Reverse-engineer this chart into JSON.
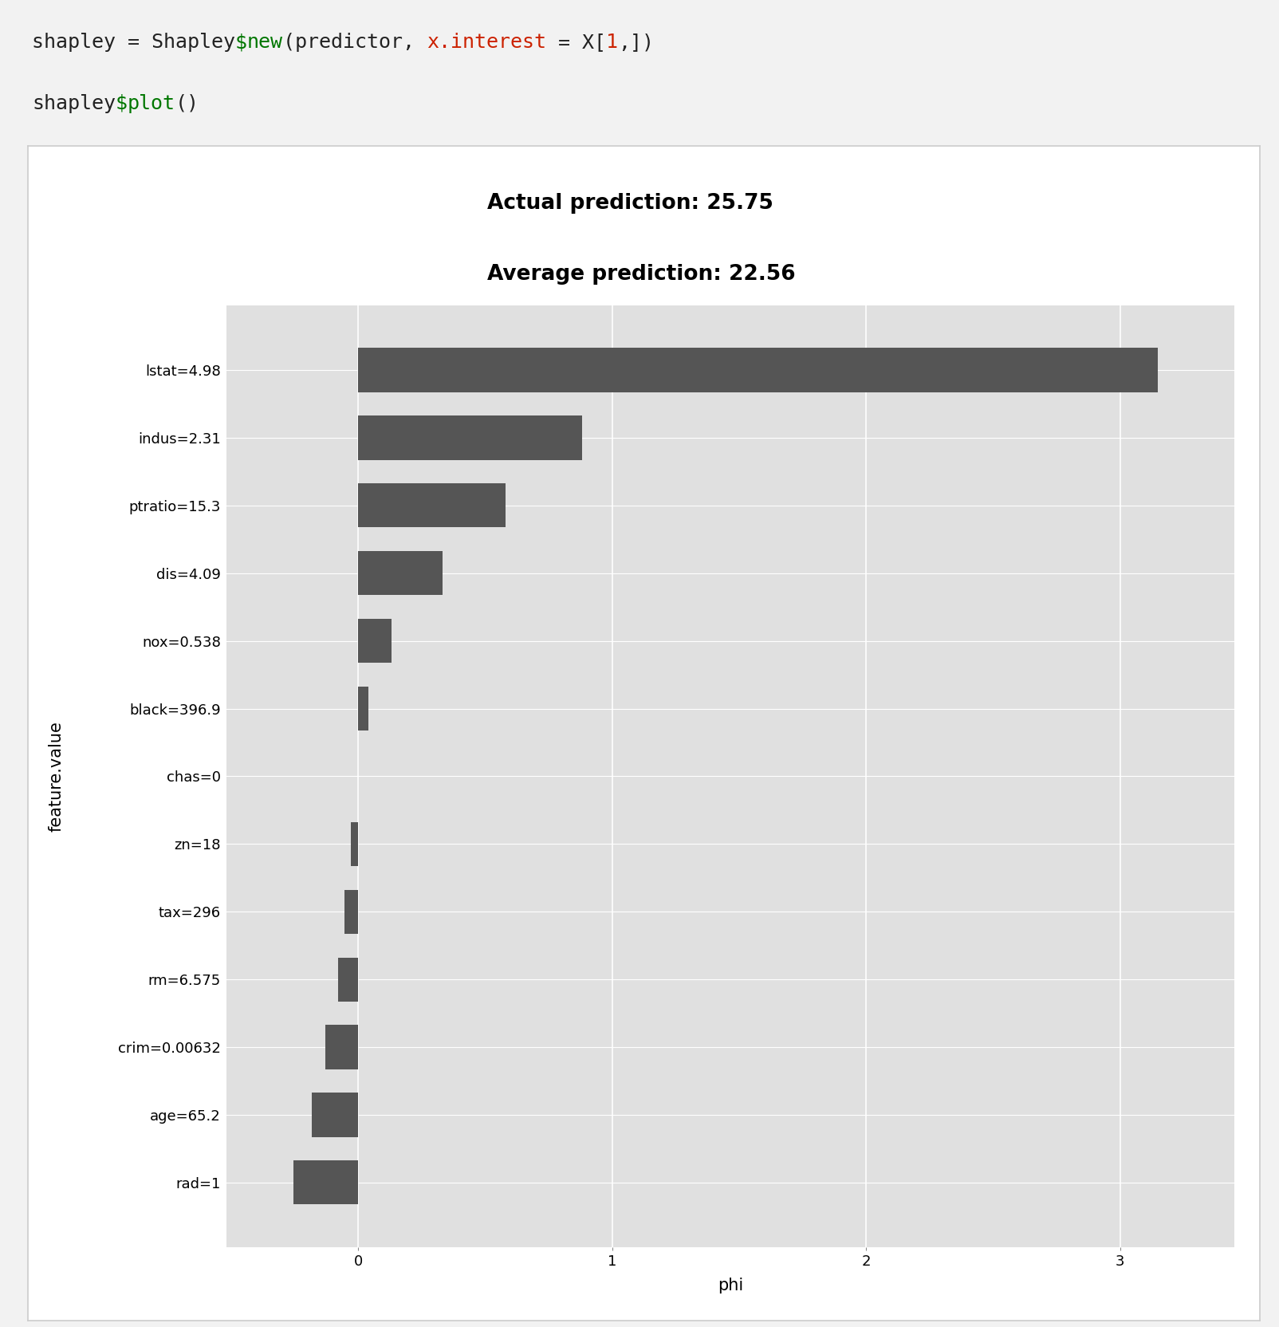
{
  "title_line1": "Actual prediction: 25.75",
  "title_line2": "Average prediction: 22.56",
  "ylabel": "feature.value",
  "xlabel": "phi",
  "categories_top_to_bottom": [
    "lstat=4.98",
    "indus=2.31",
    "ptratio=15.3",
    "dis=4.09",
    "nox=0.538",
    "black=396.9",
    "chas=0",
    "zn=18",
    "tax=296",
    "rm=6.575",
    "crim=0.00632",
    "age=65.2",
    "rad=1"
  ],
  "values_top_to_bottom": [
    3.15,
    0.88,
    0.58,
    0.33,
    0.13,
    0.04,
    0.0,
    -0.03,
    -0.055,
    -0.08,
    -0.13,
    -0.185,
    -0.255
  ],
  "bar_color": "#555555",
  "plot_bg_color": "#e0e0e0",
  "outer_bg_color": "#f2f2f2",
  "panel_facecolor": "#ffffff",
  "xlim_min": -0.52,
  "xlim_max": 3.45,
  "xticks": [
    0,
    1,
    2,
    3
  ],
  "grid_color": "#ffffff",
  "title_fontsize": 19,
  "axis_label_fontsize": 15,
  "tick_fontsize": 13,
  "code_fontsize": 18,
  "code_bg_color": "#f0f0f0",
  "code_line1_parts": [
    {
      "text": "shapley = Shapley",
      "color": "#222222"
    },
    {
      "text": "$",
      "color": "#007700"
    },
    {
      "text": "new",
      "color": "#007700"
    },
    {
      "text": "(predictor, ",
      "color": "#222222"
    },
    {
      "text": "x.interest",
      "color": "#cc2200"
    },
    {
      "text": " = X[",
      "color": "#222222"
    },
    {
      "text": "1",
      "color": "#cc2200"
    },
    {
      "text": ",])",
      "color": "#222222"
    }
  ],
  "code_line2_parts": [
    {
      "text": "shapley",
      "color": "#222222"
    },
    {
      "text": "$",
      "color": "#007700"
    },
    {
      "text": "plot",
      "color": "#007700"
    },
    {
      "text": "()",
      "color": "#222222"
    }
  ]
}
